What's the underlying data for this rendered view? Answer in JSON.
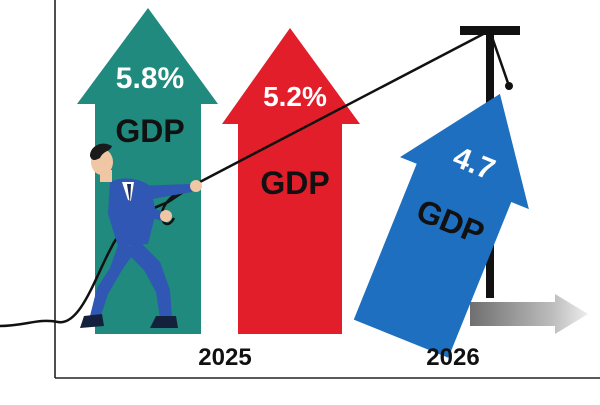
{
  "arrows": [
    {
      "id": "teal",
      "percent": "5.8%",
      "label": "GDP",
      "color": "#1f8a7d"
    },
    {
      "id": "red",
      "percent": "5.2%",
      "label": "GDP",
      "color": "#e31e2b"
    },
    {
      "id": "blue",
      "percent": "4.7",
      "label": "GDP",
      "color": "#1e6fc0"
    }
  ],
  "years": [
    "2025",
    "2026"
  ],
  "colors": {
    "label_dark": "#111111",
    "label_light": "#ffffff",
    "suit": "#2f57b3",
    "axis": "#222222"
  }
}
